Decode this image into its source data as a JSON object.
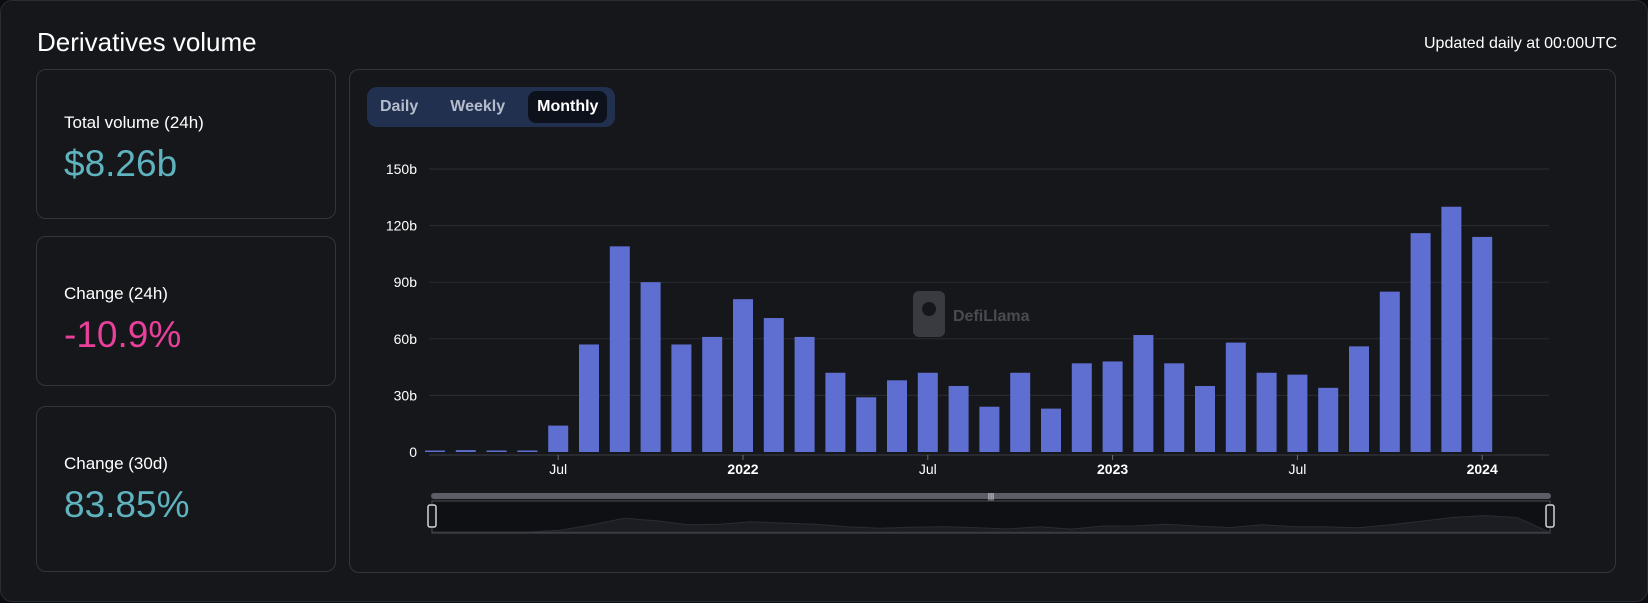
{
  "header": {
    "title": "Derivatives volume",
    "updated": "Updated daily at 00:00UTC"
  },
  "stats": [
    {
      "label": "Total volume (24h)",
      "value": "$8.26b",
      "color": "#5fb3bf"
    },
    {
      "label": "Change (24h)",
      "value": "-10.9%",
      "color": "#e9409b"
    },
    {
      "label": "Change (30d)",
      "value": "83.85%",
      "color": "#5fb3bf"
    }
  ],
  "tabs": {
    "daily": "Daily",
    "weekly": "Weekly",
    "monthly": "Monthly",
    "active": "monthly"
  },
  "watermark": "DefiLlama",
  "chart_data": {
    "type": "bar",
    "title": "Derivatives volume",
    "xlabel": "",
    "ylabel": "",
    "ylim": [
      0,
      150
    ],
    "y_unit": "b",
    "yticks": [
      0,
      30,
      60,
      90,
      120,
      150
    ],
    "ytick_labels": [
      "0",
      "30b",
      "60b",
      "90b",
      "120b",
      "150b"
    ],
    "xtick_labels": [
      {
        "label": "Jul",
        "month_index": 4,
        "bold": false
      },
      {
        "label": "2022",
        "month_index": 10,
        "bold": true
      },
      {
        "label": "Jul",
        "month_index": 16,
        "bold": false
      },
      {
        "label": "2023",
        "month_index": 22,
        "bold": true
      },
      {
        "label": "Jul",
        "month_index": 28,
        "bold": false
      },
      {
        "label": "2024",
        "month_index": 34,
        "bold": true
      }
    ],
    "bar_color": "#5e6fd1",
    "categories": [
      "2021-03",
      "2021-04",
      "2021-05",
      "2021-06",
      "2021-07",
      "2021-08",
      "2021-09",
      "2021-10",
      "2021-11",
      "2021-12",
      "2022-01",
      "2022-02",
      "2022-03",
      "2022-04",
      "2022-05",
      "2022-06",
      "2022-07",
      "2022-08",
      "2022-09",
      "2022-10",
      "2022-11",
      "2022-12",
      "2023-01",
      "2023-02",
      "2023-03",
      "2023-04",
      "2023-05",
      "2023-06",
      "2023-07",
      "2023-08",
      "2023-09",
      "2023-10",
      "2023-11",
      "2023-12",
      "2024-01",
      "2024-02"
    ],
    "values": [
      0.5,
      1.0,
      0.8,
      0.8,
      14,
      57,
      109,
      90,
      57,
      61,
      81,
      71,
      61,
      42,
      29,
      38,
      42,
      35,
      24,
      42,
      23,
      47,
      48,
      62,
      47,
      35,
      58,
      42,
      41,
      34,
      56,
      85,
      116,
      130,
      114,
      0
    ]
  }
}
